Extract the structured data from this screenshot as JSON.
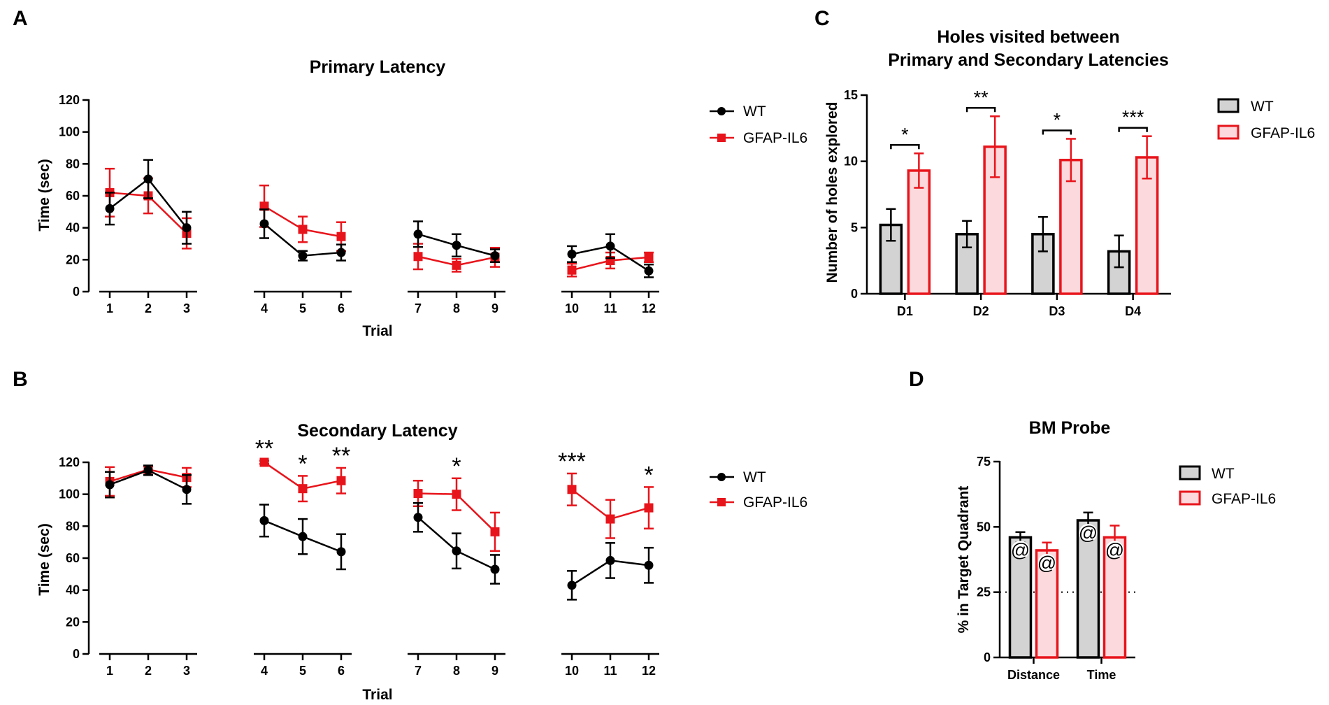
{
  "colors": {
    "wt": "#000000",
    "il6": "#e8141b",
    "wt_fill": "#d3d3d3",
    "il6_fill": "#fbd9dc"
  },
  "panels": {
    "a": "A",
    "b": "B",
    "c": "C",
    "d": "D"
  },
  "chart_data": [
    {
      "id": "A",
      "type": "line",
      "title": "Primary Latency",
      "xlabel": "Trial",
      "ylabel": "Time (sec)",
      "ylim": [
        0,
        120
      ],
      "yticks": [
        0,
        20,
        40,
        60,
        80,
        100,
        120
      ],
      "x": [
        1,
        2,
        3,
        4,
        5,
        6,
        7,
        8,
        9,
        10,
        11,
        12
      ],
      "x_tick_labels": [
        "1",
        "2",
        "3",
        "4",
        "5",
        "6",
        "7",
        "8",
        "9",
        "10",
        "11",
        "12"
      ],
      "segments": [
        [
          0,
          1,
          2
        ],
        [
          3,
          4,
          5
        ],
        [
          6,
          7,
          8
        ],
        [
          9,
          10,
          11
        ]
      ],
      "series": [
        {
          "name": "WT",
          "marker": "circle",
          "values": [
            52,
            70.5,
            40,
            42.5,
            22.5,
            24.5,
            36,
            29,
            22.5,
            23.5,
            28.5,
            13
          ],
          "errors": [
            10,
            12,
            10,
            9,
            3,
            5,
            8,
            7,
            4,
            5,
            7.5,
            4
          ]
        },
        {
          "name": "GFAP-IL6",
          "marker": "square",
          "values": [
            62,
            60,
            36.5,
            53.5,
            39,
            34.5,
            22,
            16.5,
            21.5,
            13.5,
            19.5,
            21.5
          ],
          "errors": [
            15,
            11,
            9.5,
            13,
            8,
            9,
            8,
            4,
            6,
            4,
            5,
            3
          ]
        }
      ],
      "annotations": [],
      "legend": [
        "WT",
        "GFAP-IL6"
      ]
    },
    {
      "id": "B",
      "type": "line",
      "title": "Secondary Latency",
      "xlabel": "Trial",
      "ylabel": "Time (sec)",
      "ylim": [
        0,
        120
      ],
      "yticks": [
        0,
        20,
        40,
        60,
        80,
        100,
        120
      ],
      "x": [
        1,
        2,
        3,
        4,
        5,
        6,
        7,
        8,
        9,
        10,
        11,
        12
      ],
      "x_tick_labels": [
        "1",
        "2",
        "3",
        "4",
        "5",
        "6",
        "7",
        "8",
        "9",
        "10",
        "11",
        "12"
      ],
      "segments": [
        [
          0,
          1,
          2
        ],
        [
          3,
          4,
          5
        ],
        [
          6,
          7,
          8
        ],
        [
          9,
          10,
          11
        ]
      ],
      "series": [
        {
          "name": "WT",
          "marker": "circle",
          "values": [
            106,
            115,
            103,
            83.5,
            73.5,
            64,
            85.5,
            64.5,
            53,
            43,
            58.5,
            55.5
          ],
          "errors": [
            8,
            3,
            9,
            10,
            11,
            11,
            9,
            11,
            9,
            9,
            11,
            11
          ]
        },
        {
          "name": "GFAP-IL6",
          "marker": "square",
          "values": [
            108,
            115.5,
            110.5,
            120,
            103.5,
            108.5,
            100.5,
            100,
            76.5,
            103,
            84.5,
            91.5
          ],
          "errors": [
            9,
            2,
            6,
            1,
            8,
            8,
            8,
            10,
            12,
            10,
            12,
            13
          ]
        }
      ],
      "annotations": [
        {
          "x": 4,
          "text": "**"
        },
        {
          "x": 5,
          "text": "*"
        },
        {
          "x": 6,
          "text": "**"
        },
        {
          "x": 8,
          "text": "*"
        },
        {
          "x": 10,
          "text": "***"
        },
        {
          "x": 12,
          "text": "*"
        }
      ],
      "legend": [
        "WT",
        "GFAP-IL6"
      ]
    },
    {
      "id": "C",
      "type": "bar",
      "title_lines": [
        "Holes visited between",
        "Primary and Secondary Latencies"
      ],
      "xlabel": "",
      "ylabel": "Number of holes explored",
      "ylim": [
        0,
        15
      ],
      "yticks": [
        0,
        5,
        10,
        15
      ],
      "categories": [
        "D1",
        "D2",
        "D3",
        "D4"
      ],
      "series": [
        {
          "name": "WT",
          "values": [
            5.2,
            4.5,
            4.5,
            3.2
          ],
          "errors": [
            1.2,
            1.0,
            1.3,
            1.2
          ]
        },
        {
          "name": "GFAP-IL6",
          "values": [
            9.3,
            11.1,
            10.1,
            10.3
          ],
          "errors": [
            1.3,
            2.3,
            1.6,
            1.6
          ]
        }
      ],
      "annotations": [
        {
          "category": "D1",
          "text": "*"
        },
        {
          "category": "D2",
          "text": "**"
        },
        {
          "category": "D3",
          "text": "*"
        },
        {
          "category": "D4",
          "text": "***"
        }
      ],
      "legend": [
        "WT",
        "GFAP-IL6"
      ]
    },
    {
      "id": "D",
      "type": "bar",
      "title": "BM Probe",
      "xlabel": "",
      "ylabel": "% in Target Quadrant",
      "ylim": [
        0,
        75
      ],
      "yticks": [
        0,
        25,
        50,
        75
      ],
      "reference_line": 25,
      "categories": [
        "Distance",
        "Time"
      ],
      "series": [
        {
          "name": "WT",
          "values": [
            46,
            52.5
          ],
          "errors": [
            2,
            3
          ]
        },
        {
          "name": "GFAP-IL6",
          "values": [
            41,
            46
          ],
          "errors": [
            3,
            4.5
          ]
        }
      ],
      "bar_marker": "@",
      "legend": [
        "WT",
        "GFAP-IL6"
      ]
    }
  ]
}
